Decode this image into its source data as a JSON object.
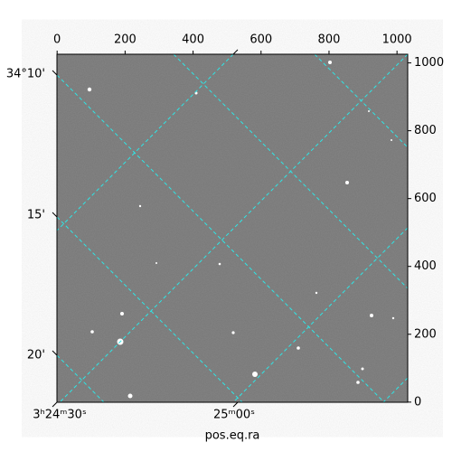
{
  "chart_data": {
    "type": "image",
    "xlim": [
      -0.5,
      1031.5
    ],
    "xticks": [
      0,
      200,
      400,
      600,
      800,
      1000
    ],
    "ylim": [
      -0.5,
      1025.5
    ],
    "yticks": [
      0,
      200,
      400,
      600,
      800,
      1000
    ],
    "ra_tick_labels": [
      "3ʰ24ᵐ30ˢ",
      "25ᵐ00ˢ"
    ],
    "dec_tick_labels": [
      "34°10'",
      "15'",
      "20'"
    ],
    "xlabel": "pos.eq.ra"
  }
}
